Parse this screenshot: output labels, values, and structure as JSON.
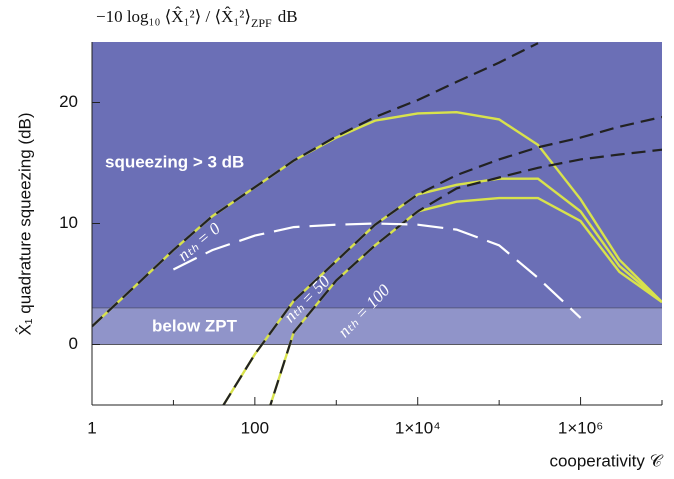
{
  "chart_data": {
    "type": "line",
    "title_main": "−10 log₁₀ ⟨X̂₁²⟩ / ⟨X̂₁²⟩",
    "title_sub": "ZPF",
    "title_unit": "dB",
    "y_label": "X̂₁ quadrature squeezing (dB)",
    "x_label": "cooperativity 𝒞",
    "x_log": true,
    "xlim": [
      1,
      10000000
    ],
    "xticks": [
      1,
      100,
      {
        "value": 10000,
        "label": "1×10⁴"
      },
      {
        "value": 1000000,
        "label": "1×10⁶"
      }
    ],
    "xminor": [
      10,
      1000,
      100000,
      10000000
    ],
    "ylim": [
      -5,
      25
    ],
    "yticks": [
      0,
      10,
      20
    ],
    "regions": [
      {
        "label": "squeezing > 3 dB",
        "from": 3,
        "to": 25,
        "color": "#6b6fb6"
      },
      {
        "label": "below ZPT",
        "from": 0,
        "to": 3,
        "color": "#9094c9"
      }
    ],
    "annotations": [
      "nₜₕ = 0",
      "nₜₕ = 50",
      "nₜₕ = 100"
    ],
    "x": [
      1,
      3,
      10,
      30,
      100,
      300,
      1000,
      3000,
      10000,
      30000,
      100000,
      300000,
      1000000,
      3000000,
      10000000
    ],
    "series": [
      {
        "color": "#d8e24c",
        "dash": "solid",
        "values": [
          1.5,
          4.5,
          7.8,
          10.6,
          13,
          15.2,
          17.1,
          18.5,
          19.1,
          19.2,
          18.6,
          16.5,
          12,
          7,
          3.5
        ]
      },
      {
        "color": "#d8e24c",
        "dash": "solid",
        "values": [
          null,
          null,
          null,
          -6.5,
          -0.8,
          3.6,
          6.9,
          9.9,
          12.4,
          13.2,
          13.7,
          13.7,
          11,
          6.5,
          3.5
        ]
      },
      {
        "color": "#d8e24c",
        "dash": "solid",
        "values": [
          null,
          null,
          null,
          null,
          -9,
          1,
          5.3,
          8.2,
          11,
          11.8,
          12.1,
          12.1,
          10.2,
          6,
          3.5
        ]
      },
      {
        "color": "#222222",
        "dash": "short",
        "values": [
          1.5,
          4.5,
          7.8,
          10.6,
          13,
          15.2,
          17.2,
          18.8,
          20.2,
          21.7,
          23.3,
          24.9,
          null,
          null,
          null
        ]
      },
      {
        "color": "#222222",
        "dash": "short",
        "values": [
          null,
          null,
          null,
          -6.5,
          -0.8,
          3.6,
          6.9,
          9.9,
          12.4,
          14,
          15.3,
          16.3,
          17.1,
          18,
          18.8
        ]
      },
      {
        "color": "#222222",
        "dash": "short",
        "values": [
          null,
          null,
          null,
          null,
          -9,
          1,
          5.3,
          8.2,
          11,
          12.9,
          13.8,
          14.6,
          15.3,
          15.7,
          16.1
        ]
      },
      {
        "color": "#ffffff",
        "dash": "long",
        "values": [
          null,
          null,
          6.2,
          7.8,
          9,
          9.7,
          9.9,
          10,
          9.9,
          9.5,
          8.2,
          5.5,
          2.2,
          null,
          null
        ]
      }
    ]
  }
}
